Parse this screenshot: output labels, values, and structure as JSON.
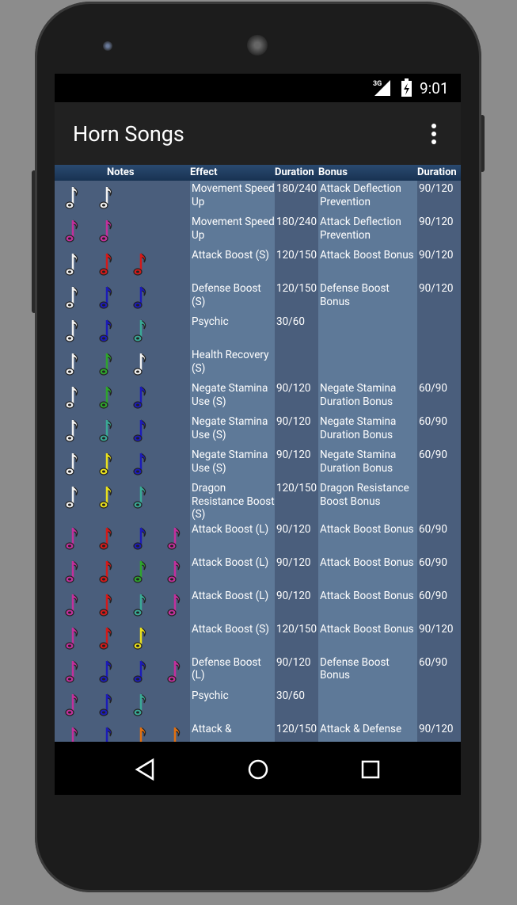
{
  "status_bar": {
    "network": "3G",
    "time": "9:01"
  },
  "app_bar": {
    "title": "Horn Songs"
  },
  "table": {
    "columns": [
      "Notes",
      "Effect",
      "Duration",
      "Bonus",
      "Duration"
    ],
    "rows": [
      {
        "notes": [
          "#f2f2f2",
          "#f2f2f2"
        ],
        "cells": [
          "Movement Speed Up",
          "180/240",
          "Attack Deflection Prevention",
          "90/120"
        ]
      },
      {
        "notes": [
          "#c2309c",
          "#c2309c"
        ],
        "cells": [
          "Movement Speed Up",
          "180/240",
          "Attack Deflection Prevention",
          "90/120"
        ]
      },
      {
        "notes": [
          "#f2f2f2",
          "#d41a1a",
          "#d41a1a"
        ],
        "cells": [
          "Attack Boost (S)",
          "120/150",
          "Attack Boost Bonus",
          "90/120"
        ]
      },
      {
        "notes": [
          "#f2f2f2",
          "#1c1cb8",
          "#1c1cb8"
        ],
        "cells": [
          "Defense Boost (S)",
          "120/150",
          "Defense Boost Bonus",
          "90/120"
        ]
      },
      {
        "notes": [
          "#f2f2f2",
          "#1c1cb8",
          "#3aa896"
        ],
        "cells": [
          "Psychic",
          "30/60",
          null,
          null
        ]
      },
      {
        "notes": [
          "#f2f2f2",
          "#2ea42e",
          "#f2f2f2"
        ],
        "cells": [
          "Health Recovery (S)",
          null,
          null,
          null
        ]
      },
      {
        "notes": [
          "#f2f2f2",
          "#2ea42e",
          "#1c1cb8"
        ],
        "cells": [
          "Negate Stamina Use (S)",
          "90/120",
          "Negate Stamina Duration Bonus",
          "60/90"
        ]
      },
      {
        "notes": [
          "#f2f2f2",
          "#3aa896",
          "#1c1cb8"
        ],
        "cells": [
          "Negate Stamina Use (S)",
          "90/120",
          "Negate Stamina Duration Bonus",
          "60/90"
        ]
      },
      {
        "notes": [
          "#f2f2f2",
          "#e8e01e",
          "#1c1cb8"
        ],
        "cells": [
          "Negate Stamina Use (S)",
          "90/120",
          "Negate Stamina Duration Bonus",
          "60/90"
        ]
      },
      {
        "notes": [
          "#f2f2f2",
          "#e8e01e",
          "#3aa896"
        ],
        "cells": [
          "Dragon Resistance Boost (S)",
          "120/150",
          "Dragon Resistance Boost Bonus",
          null
        ]
      },
      {
        "notes": [
          "#c2309c",
          "#d41a1a",
          "#1c1cb8",
          "#c2309c"
        ],
        "cells": [
          "Attack Boost (L)",
          "90/120",
          "Attack Boost Bonus",
          "60/90"
        ]
      },
      {
        "notes": [
          "#c2309c",
          "#d41a1a",
          "#2ea42e",
          "#c2309c"
        ],
        "cells": [
          "Attack Boost (L)",
          "90/120",
          "Attack Boost Bonus",
          "60/90"
        ]
      },
      {
        "notes": [
          "#c2309c",
          "#d41a1a",
          "#3aa896",
          "#c2309c"
        ],
        "cells": [
          "Attack Boost (L)",
          "90/120",
          "Attack Boost Bonus",
          "60/90"
        ]
      },
      {
        "notes": [
          "#c2309c",
          "#d41a1a",
          "#e8e01e"
        ],
        "cells": [
          "Attack Boost (S)",
          "120/150",
          "Attack Boost Bonus",
          "90/120"
        ]
      },
      {
        "notes": [
          "#c2309c",
          "#1c1cb8",
          "#1c1cb8",
          "#c2309c"
        ],
        "cells": [
          "Defense Boost (L)",
          "90/120",
          "Defense Boost Bonus",
          "60/90"
        ]
      },
      {
        "notes": [
          "#c2309c",
          "#1c1cb8",
          "#3aa896"
        ],
        "cells": [
          "Psychic",
          "30/60",
          null,
          null
        ]
      },
      {
        "notes": [
          "#c2309c",
          "#1c1cb8",
          "#e07012",
          "#e07012"
        ],
        "cells": [
          "Attack &",
          "120/150",
          "Attack & Defense",
          "90/120"
        ]
      }
    ]
  }
}
